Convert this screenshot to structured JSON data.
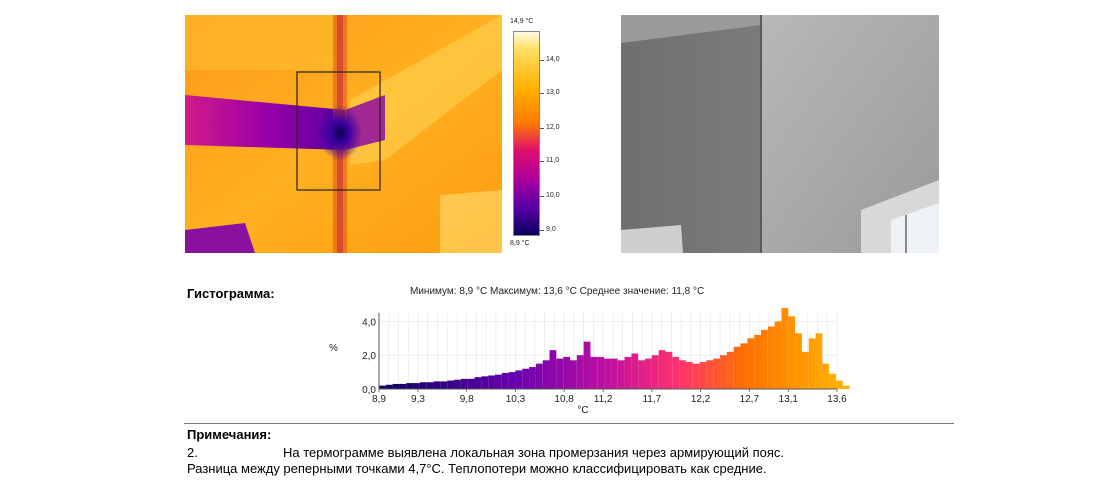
{
  "thermogram": {
    "scale_max": "14,9 °C",
    "scale_min": "8,9 °C",
    "ticks": [
      "14,0",
      "13,0",
      "12,0",
      "11,0",
      "10,0",
      "9,0"
    ]
  },
  "histogram": {
    "heading": "Гистограмма:",
    "stats": "Минимум: 8,9 °C Максимум: 13,6 °C Среднее значение: 11,8 °C"
  },
  "chart_data": {
    "type": "bar",
    "ylabel": "%",
    "xlabel": "°C",
    "ylim": [
      0,
      4.5
    ],
    "xlim": [
      8.9,
      13.6
    ],
    "y_ticks": [
      "0,0",
      "2,0",
      "4,0"
    ],
    "x_ticks": [
      "8,9",
      "9,3",
      "9,8",
      "10,3",
      "10,8",
      "11,2",
      "11,7",
      "12,2",
      "12,7",
      "13,1",
      "13,6"
    ],
    "x_tick_values": [
      8.9,
      9.3,
      9.8,
      10.3,
      10.8,
      11.2,
      11.7,
      12.2,
      12.7,
      13.1,
      13.6
    ],
    "bin_start": 8.9,
    "bin_width": 0.07,
    "values": [
      0.2,
      0.25,
      0.3,
      0.3,
      0.35,
      0.35,
      0.4,
      0.4,
      0.45,
      0.45,
      0.5,
      0.55,
      0.6,
      0.6,
      0.7,
      0.75,
      0.8,
      0.85,
      0.95,
      1.0,
      1.1,
      1.2,
      1.3,
      1.5,
      1.7,
      2.3,
      1.8,
      1.9,
      1.7,
      2.0,
      2.8,
      1.9,
      1.9,
      1.8,
      1.8,
      1.7,
      1.9,
      2.1,
      1.7,
      1.8,
      2.0,
      2.3,
      2.2,
      1.9,
      1.7,
      1.6,
      1.5,
      1.6,
      1.7,
      1.8,
      2.0,
      2.2,
      2.5,
      2.7,
      3.0,
      3.2,
      3.5,
      3.7,
      4.0,
      4.8,
      4.3,
      3.3,
      2.2,
      3.0,
      3.3,
      1.5,
      0.9,
      0.5,
      0.2
    ]
  },
  "notes": {
    "heading": "Примечания:",
    "number": "2.",
    "line1": "На термограмме выявлена локальная зона промерзания через армирующий пояс.",
    "line2": "Разница между реперными точками 4,7°C. Теплопотери можно классифицировать как средние."
  }
}
